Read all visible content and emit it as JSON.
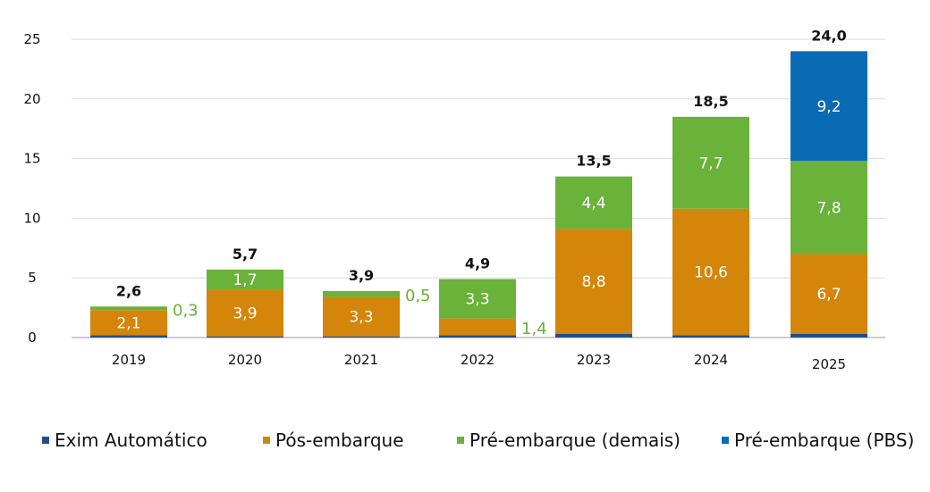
{
  "chart_data": {
    "type": "bar",
    "stacked": true,
    "categories": [
      "2019",
      "2020",
      "2021",
      "2022",
      "2023",
      "2024",
      "2025"
    ],
    "ylim": [
      0,
      25
    ],
    "yticks": [
      "0",
      "5",
      "10",
      "15",
      "20",
      "25"
    ],
    "grid": true,
    "legend_position": "bottom",
    "series": [
      {
        "name": "Exim Automático",
        "color": "#1f4e8c",
        "values": [
          0.2,
          0.1,
          0.1,
          0.2,
          0.3,
          0.2,
          0.3
        ],
        "labels": [
          "",
          "",
          "",
          "",
          "",
          "",
          ""
        ]
      },
      {
        "name": "Pós-embarque",
        "color": "#d4860b",
        "values": [
          2.1,
          3.9,
          3.3,
          1.4,
          8.8,
          10.6,
          6.7
        ],
        "labels": [
          "2,1",
          "3,9",
          "3,3",
          "1,4",
          "8,8",
          "10,6",
          "6,7"
        ]
      },
      {
        "name": "Pré-embarque (demais)",
        "color": "#6ab23a",
        "values": [
          0.3,
          1.7,
          0.5,
          3.3,
          4.4,
          7.7,
          7.8
        ],
        "labels": [
          "0,3",
          "1,7",
          "0,5",
          "3,3",
          "4,4",
          "7,7",
          "7,8"
        ]
      },
      {
        "name": "Pré-embarque (PBS)",
        "color": "#0a6bb5",
        "values": [
          0,
          0,
          0,
          0,
          0,
          0,
          9.2
        ],
        "labels": [
          "",
          "",
          "",
          "",
          "",
          "",
          "9,2"
        ]
      }
    ],
    "totals": [
      2.6,
      5.7,
      3.9,
      4.9,
      13.5,
      18.5,
      24.0
    ],
    "total_labels": [
      "2,6",
      "5,7",
      "3,9",
      "4,9",
      "13,5",
      "18,5",
      "24,0"
    ],
    "title": "",
    "xlabel": "",
    "ylabel": ""
  }
}
